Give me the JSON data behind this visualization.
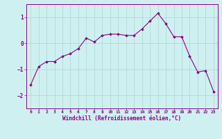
{
  "x": [
    0,
    1,
    2,
    3,
    4,
    5,
    6,
    7,
    8,
    9,
    10,
    11,
    12,
    13,
    14,
    15,
    16,
    17,
    18,
    19,
    20,
    21,
    22,
    23
  ],
  "y": [
    -1.6,
    -0.9,
    -0.7,
    -0.7,
    -0.5,
    -0.4,
    -0.2,
    0.2,
    0.05,
    0.3,
    0.35,
    0.35,
    0.3,
    0.3,
    0.55,
    0.85,
    1.15,
    0.75,
    0.25,
    0.25,
    -0.5,
    -1.1,
    -1.05,
    -1.85
  ],
  "line_color": "#880088",
  "marker": "D",
  "marker_size": 1.8,
  "bg_color": "#cff0f0",
  "grid_color": "#aad4d4",
  "xlabel": "Windchill (Refroidissement éolien,°C)",
  "xlabel_color": "#880088",
  "tick_color": "#880088",
  "axis_color": "#880088",
  "xlim": [
    -0.5,
    23.5
  ],
  "ylim": [
    -2.5,
    1.5
  ],
  "yticks": [
    -2,
    -1,
    0,
    1
  ],
  "xticks": [
    0,
    1,
    2,
    3,
    4,
    5,
    6,
    7,
    8,
    9,
    10,
    11,
    12,
    13,
    14,
    15,
    16,
    17,
    18,
    19,
    20,
    21,
    22,
    23
  ]
}
